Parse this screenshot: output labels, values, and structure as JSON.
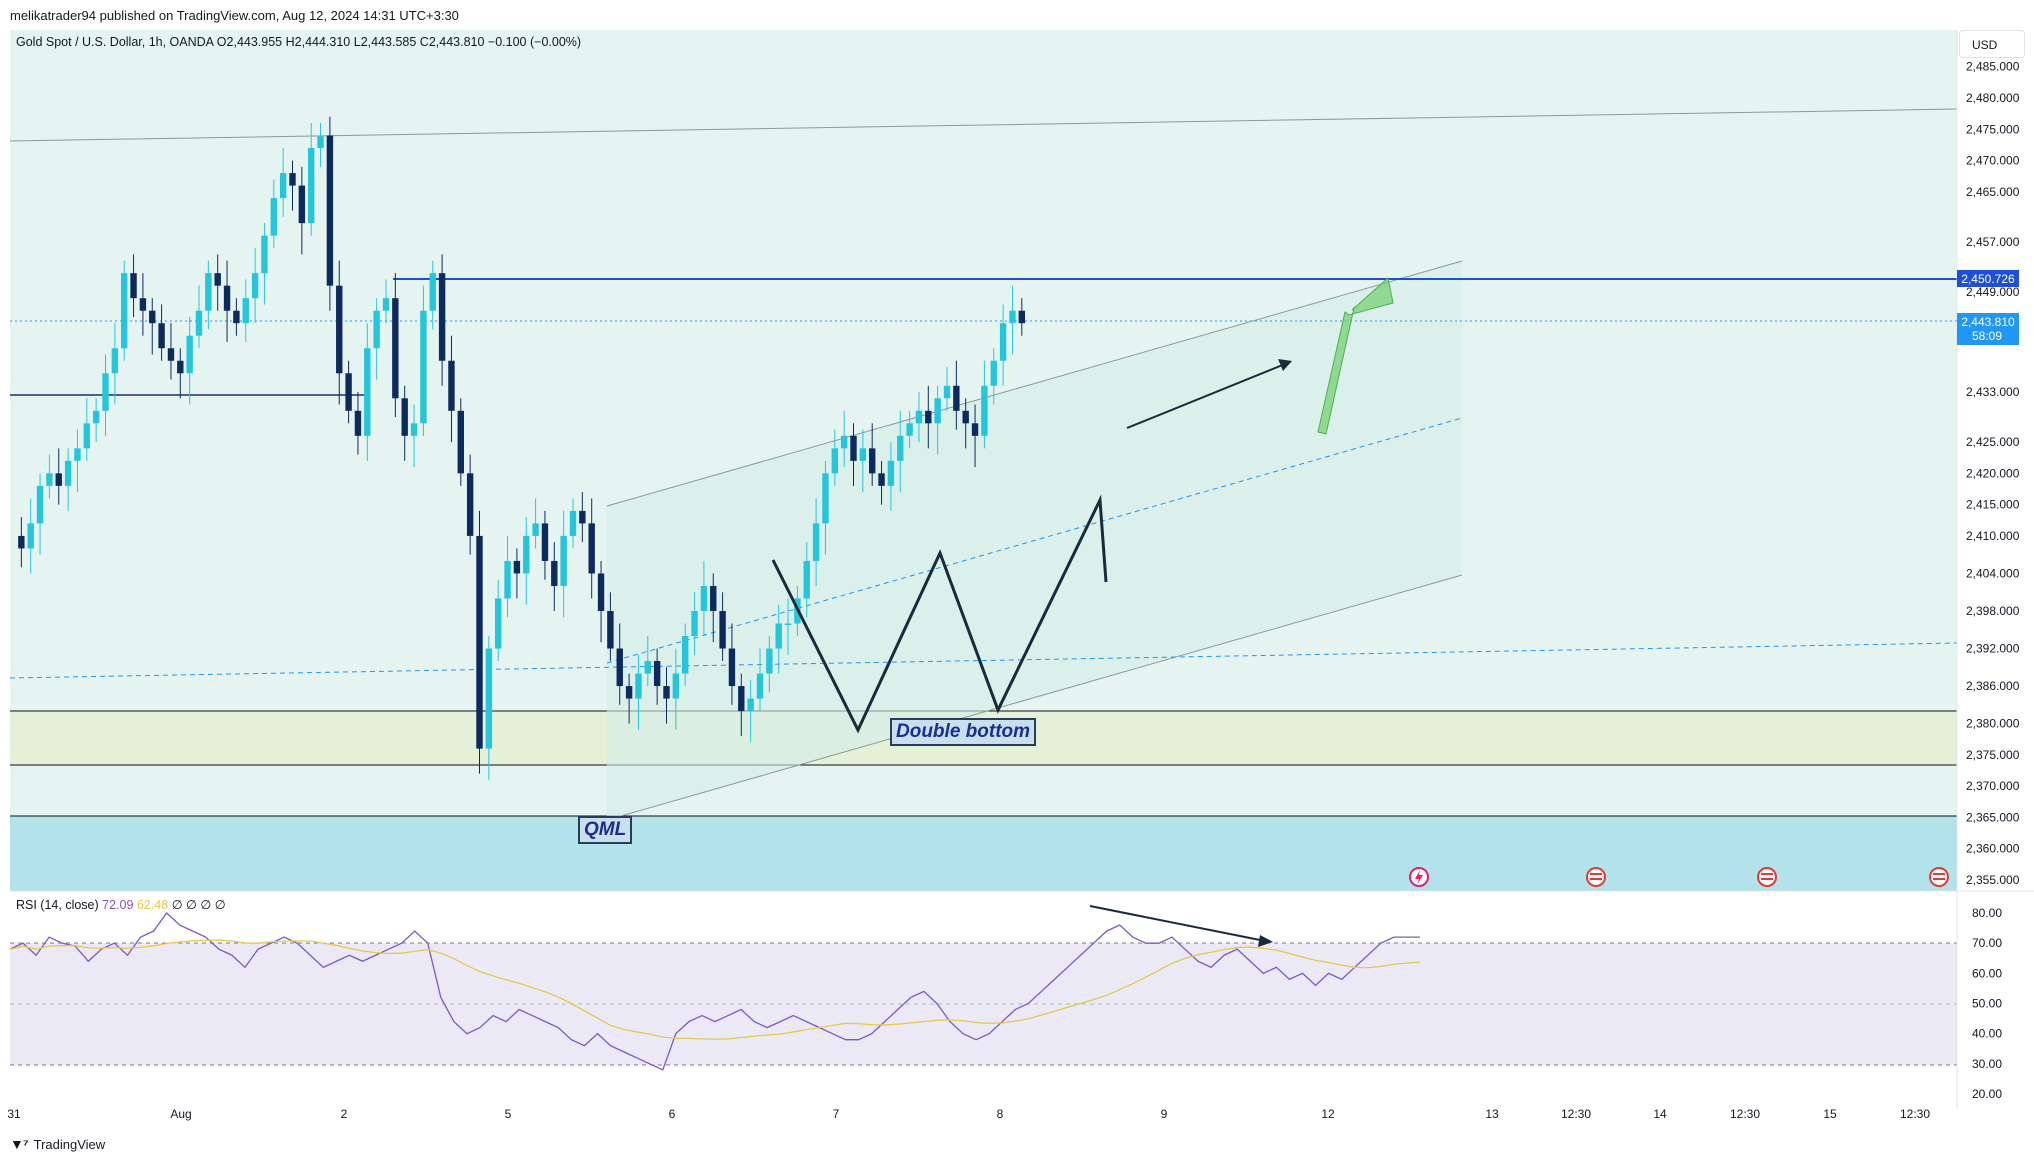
{
  "header": {
    "published": "melikatrader94 published on TradingView.com, Aug 12, 2024 14:31 UTC+3:30",
    "symbol": "Gold Spot / U.S. Dollar, 1h, OANDA",
    "open": "O2,443.955",
    "high": "H2,444.310",
    "low": "L2,443.585",
    "close": "C2,443.810",
    "change": "−0.100 (−0.00%)"
  },
  "currency": "USD",
  "price_axis": {
    "ticks": [
      "2,485.000",
      "2,480.000",
      "2,475.000",
      "2,470.000",
      "2,465.000",
      "2,457.000",
      "2,449.000",
      "2,433.000",
      "2,425.000",
      "2,420.000",
      "2,415.000",
      "2,410.000",
      "2,404.000",
      "2,398.000",
      "2,392.000",
      "2,386.000",
      "2,380.000",
      "2,375.000",
      "2,370.000",
      "2,365.000",
      "2,360.000",
      "2,355.000"
    ],
    "resistance_label": "2,450.726",
    "last_price_label": "2,443.810",
    "countdown_label": "58:09"
  },
  "time_axis": {
    "ticks": [
      "31",
      "Aug",
      "2",
      "5",
      "6",
      "7",
      "8",
      "9",
      "12",
      "13",
      "12:30",
      "14",
      "12:30",
      "15",
      "12:30"
    ]
  },
  "rsi": {
    "title": "RSI (14, close)",
    "value": "72.09",
    "ma_value": "62.48",
    "extra": "∅ ∅ ∅ ∅",
    "ticks": [
      "80.00",
      "70.00",
      "60.00",
      "50.00",
      "40.00",
      "30.00",
      "20.00"
    ]
  },
  "annotations": {
    "qml": "QML",
    "double_bottom": "Double bottom"
  },
  "footer": {
    "brand": "TradingView"
  },
  "colors": {
    "up": "#26c6da",
    "down": "#0d2a5c",
    "resistance": "#1e4fd6",
    "last_price": "#2196f3",
    "rsi_line": "#7e57c2",
    "rsi_ma": "#e6c84a"
  },
  "chart_data": {
    "type": "candlestick",
    "title": "Gold Spot / U.S. Dollar, 1h, OANDA",
    "ylim": [
      2355,
      2487
    ],
    "x_categories": [
      "Jul 31",
      "Aug 1",
      "Aug 2",
      "Aug 5",
      "Aug 6",
      "Aug 7",
      "Aug 8",
      "Aug 9",
      "Aug 12"
    ],
    "close_series": [
      2410,
      2408,
      2412,
      2418,
      2420,
      2418,
      2422,
      2424,
      2428,
      2430,
      2436,
      2440,
      2452,
      2448,
      2446,
      2444,
      2440,
      2438,
      2436,
      2442,
      2446,
      2452,
      2450,
      2446,
      2444,
      2448,
      2452,
      2458,
      2464,
      2468,
      2466,
      2460,
      2472,
      2474,
      2450,
      2436,
      2430,
      2426,
      2440,
      2446,
      2448,
      2432,
      2426,
      2428,
      2446,
      2452,
      2438,
      2430,
      2420,
      2410,
      2376,
      2392,
      2400,
      2406,
      2404,
      2410,
      2412,
      2406,
      2402,
      2410,
      2414,
      2412,
      2404,
      2398,
      2392,
      2386,
      2384,
      2388,
      2390,
      2386,
      2384,
      2388,
      2394,
      2398,
      2402,
      2398,
      2392,
      2386,
      2382,
      2384,
      2388,
      2392,
      2396,
      2396,
      2400,
      2406,
      2412,
      2420,
      2424,
      2426,
      2422,
      2424,
      2420,
      2418,
      2422,
      2426,
      2428,
      2430,
      2428,
      2432,
      2434,
      2430,
      2428,
      2426,
      2434,
      2438,
      2444,
      2446,
      2444
    ],
    "resistance": 2450.726,
    "last_price": 2443.81,
    "demand_zone": [
      2373,
      2382
    ],
    "deep_zone": [
      2355,
      2365
    ],
    "rsi_series": [
      68,
      70,
      66,
      72,
      70,
      69,
      64,
      68,
      70,
      66,
      72,
      74,
      80,
      76,
      74,
      72,
      68,
      66,
      62,
      68,
      70,
      72,
      70,
      66,
      62,
      64,
      66,
      64,
      66,
      68,
      70,
      74,
      70,
      52,
      44,
      40,
      42,
      46,
      44,
      48,
      46,
      44,
      42,
      38,
      36,
      40,
      36,
      34,
      32,
      30,
      28,
      40,
      44,
      46,
      44,
      46,
      48,
      44,
      42,
      44,
      46,
      44,
      42,
      40,
      38,
      38,
      40,
      44,
      48,
      52,
      54,
      50,
      44,
      40,
      38,
      40,
      44,
      48,
      50,
      54,
      58,
      62,
      66,
      70,
      74,
      76,
      72,
      70,
      70,
      72,
      68,
      64,
      62,
      66,
      68,
      64,
      60,
      62,
      58,
      60,
      56,
      60,
      58,
      62,
      66,
      70,
      72,
      72,
      72
    ],
    "rsi_ylim": [
      20,
      85
    ]
  }
}
